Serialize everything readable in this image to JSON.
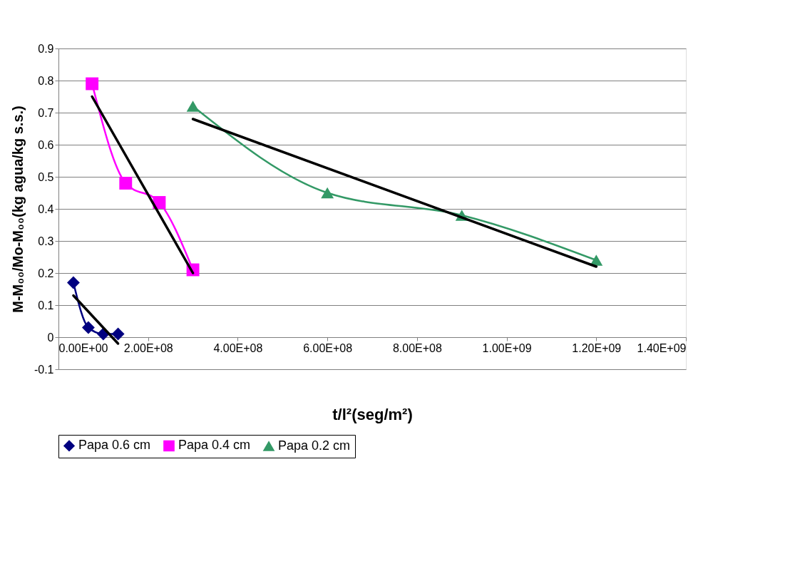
{
  "chart_data": {
    "type": "line",
    "xlabel": "t/l²(seg/m²)",
    "ylabel": "M-M₀₀/Mo-M₀₀(kg agua/kg s.s.)",
    "xlim": [
      0,
      1400000000
    ],
    "ylim": [
      -0.1,
      0.9
    ],
    "xticks": [
      {
        "value": 0,
        "label": "0.00E+00"
      },
      {
        "value": 200000000,
        "label": "2.00E+08"
      },
      {
        "value": 400000000,
        "label": "4.00E+08"
      },
      {
        "value": 600000000,
        "label": "6.00E+08"
      },
      {
        "value": 800000000,
        "label": "8.00E+08"
      },
      {
        "value": 1000000000,
        "label": "1.00E+09"
      },
      {
        "value": 1200000000,
        "label": "1.20E+09"
      },
      {
        "value": 1400000000,
        "label": "1.40E+09"
      }
    ],
    "yticks": [
      -0.1,
      0,
      0.1,
      0.2,
      0.3,
      0.4,
      0.5,
      0.6,
      0.7,
      0.8,
      0.9
    ],
    "grid": "y",
    "legend": "bottom",
    "series": [
      {
        "name": "Papa 0.6 cm",
        "color": "#000080",
        "marker": "diamond",
        "x": [
          33300000,
          66700000,
          100000000,
          133000000
        ],
        "values": [
          0.17,
          0.03,
          0.01,
          0.01
        ]
      },
      {
        "name": "Papa 0.4 cm",
        "color": "#ff00ff",
        "marker": "square",
        "x": [
          75000000,
          150000000,
          225000000,
          300000000
        ],
        "values": [
          0.79,
          0.48,
          0.42,
          0.21
        ]
      },
      {
        "name": "Papa 0.2 cm",
        "color": "#339966",
        "marker": "triangle",
        "x": [
          300000000,
          600000000,
          900000000,
          1200000000
        ],
        "values": [
          0.72,
          0.45,
          0.38,
          0.24
        ]
      },
      {
        "color": "#000000",
        "marker": "none",
        "x": [
          33300000,
          133000000
        ],
        "values": [
          0.13,
          -0.02
        ]
      },
      {
        "color": "#000000",
        "marker": "none",
        "x": [
          75000000,
          300000000
        ],
        "values": [
          0.75,
          0.2
        ]
      },
      {
        "color": "#000000",
        "marker": "none",
        "x": [
          300000000,
          1200000000
        ],
        "values": [
          0.68,
          0.22
        ]
      }
    ]
  }
}
